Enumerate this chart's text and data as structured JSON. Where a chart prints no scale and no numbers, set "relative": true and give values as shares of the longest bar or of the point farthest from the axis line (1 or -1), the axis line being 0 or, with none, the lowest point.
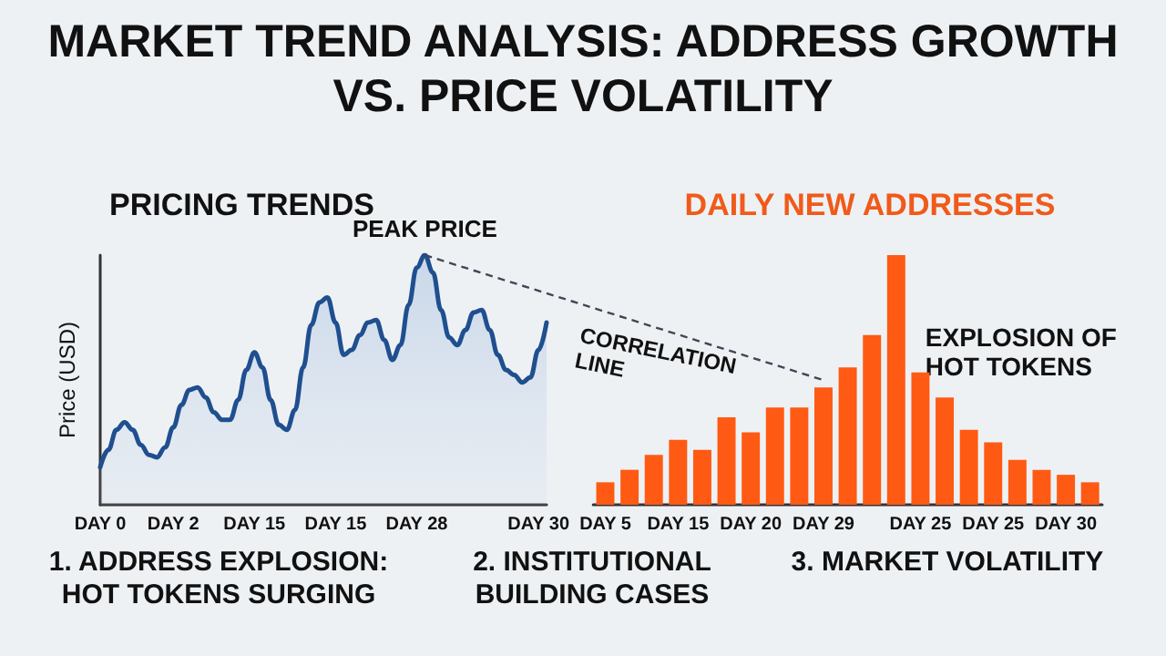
{
  "chart_data": [
    {
      "type": "other",
      "title": "MARKET TREND ANALYSIS: ADDRESS GROWTH VS. PRICE VOLATILITY",
      "annotations": [
        "1. ADDRESS EXPLOSION: HOT TOKENS SURGING",
        "2. INSTITUTIONAL BUILDING CASES",
        "3. MARKET VOLATILITY"
      ]
    },
    {
      "type": "area",
      "title": "PRICING TRENDS",
      "ylabel": "Price (USD)",
      "relative": true,
      "categories": [
        "DAY 0",
        null,
        null,
        null,
        null,
        null,
        null,
        null,
        null,
        "DAY 2",
        null,
        null,
        null,
        null,
        null,
        null,
        null,
        null,
        null,
        "DAY 15",
        null,
        null,
        null,
        null,
        null,
        null,
        null,
        null,
        null,
        "DAY 15",
        null,
        null,
        null,
        null,
        null,
        null,
        null,
        null,
        null,
        "DAY 28",
        null,
        null,
        null,
        null,
        null,
        null,
        null,
        null,
        null,
        null,
        null,
        null,
        null,
        null,
        "DAY 30",
        null
      ],
      "series": [
        {
          "color": "#1f4f8f",
          "values": [
            0.15,
            0.22,
            0.3,
            0.33,
            0.3,
            0.24,
            0.2,
            0.19,
            0.23,
            0.31,
            0.4,
            0.46,
            0.47,
            0.43,
            0.37,
            0.34,
            0.34,
            0.42,
            0.54,
            0.61,
            0.55,
            0.42,
            0.32,
            0.3,
            0.38,
            0.55,
            0.72,
            0.81,
            0.83,
            0.73,
            0.6,
            0.62,
            0.68,
            0.73,
            0.74,
            0.66,
            0.58,
            0.64,
            0.8,
            0.95,
            1.0,
            0.93,
            0.78,
            0.67,
            0.64,
            0.7,
            0.77,
            0.78,
            0.7,
            0.6,
            0.54,
            0.52,
            0.49,
            0.51,
            0.62,
            0.73
          ]
        }
      ],
      "annotations": [
        "PEAK PRICE"
      ]
    },
    {
      "type": "bar",
      "title": "DAILY NEW ADDRESSES",
      "relative": true,
      "categories": [
        "DAY 5",
        null,
        null,
        "DAY 15",
        null,
        null,
        "DAY 20",
        null,
        null,
        "DAY 29",
        null,
        null,
        null,
        "DAY 25",
        null,
        null,
        "DAY 25",
        null,
        null,
        "DAY 30",
        null
      ],
      "series": [
        {
          "color": "#ff5a14",
          "values": [
            0.09,
            0.14,
            0.2,
            0.26,
            0.22,
            0.35,
            0.29,
            0.39,
            0.39,
            0.47,
            0.55,
            0.68,
            1.0,
            0.53,
            0.43,
            0.3,
            0.25,
            0.18,
            0.14,
            0.12,
            0.09
          ]
        }
      ],
      "annotations": [
        "CORRELATION LINE",
        "EXPLOSION OF HOT TOKENS"
      ]
    }
  ]
}
